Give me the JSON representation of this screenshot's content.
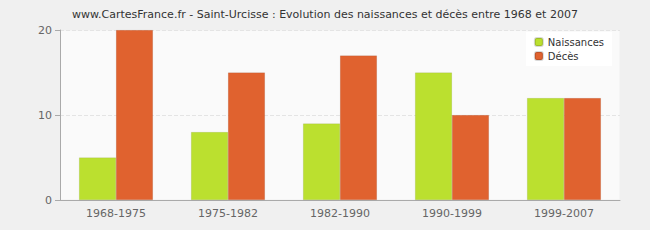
{
  "chart_data": {
    "type": "bar",
    "title": "www.CartesFrance.fr - Saint-Urcisse : Evolution des naissances et décès entre 1968 et 2007",
    "categories": [
      "1968-1975",
      "1975-1982",
      "1982-1990",
      "1990-1999",
      "1999-2007"
    ],
    "series": [
      {
        "name": "Naissances",
        "color": "#bbe02f",
        "values": [
          5,
          8,
          9,
          15,
          12
        ]
      },
      {
        "name": "Décès",
        "color": "#e0622f",
        "values": [
          20,
          15,
          17,
          10,
          12
        ]
      }
    ],
    "ylim": [
      0,
      20
    ],
    "yticks": [
      0,
      10,
      20
    ],
    "grid": true,
    "legend": "top-right"
  }
}
